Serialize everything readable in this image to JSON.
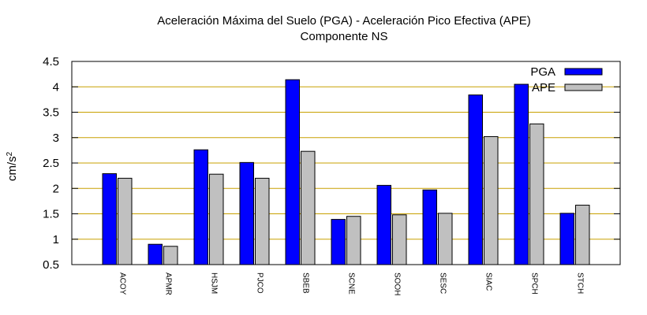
{
  "chart_data": {
    "type": "bar",
    "title": "Aceleración Máxima del Suelo (PGA) -  Aceleración Pico Efectiva (APE)",
    "subtitle": "Componente NS",
    "ylabel_base": "cm/s",
    "ylabel_exp": "2",
    "ylim": [
      0.5,
      4.5
    ],
    "yticks": [
      "0.5",
      "1",
      "1.5",
      "2",
      "2.5",
      "3",
      "3.5",
      "4",
      "4.5"
    ],
    "grid": true,
    "legend_position": "top-right",
    "categories": [
      "ACOY",
      "APMR",
      "HSJM",
      "PJCO",
      "SBEB",
      "SCNE",
      "SOOH",
      "SESC",
      "SIAC",
      "SPCH",
      "STCH"
    ],
    "series": [
      {
        "name": "PGA",
        "color": "#0000ff",
        "values": [
          2.29,
          0.9,
          2.76,
          2.51,
          4.14,
          1.39,
          2.06,
          1.97,
          3.84,
          4.05,
          1.51
        ]
      },
      {
        "name": "APE",
        "color": "#c0c0c0",
        "values": [
          2.2,
          0.86,
          2.28,
          2.2,
          2.73,
          1.45,
          1.48,
          1.51,
          3.02,
          3.27,
          1.67
        ]
      }
    ],
    "gridline_color": "#c8a000"
  }
}
